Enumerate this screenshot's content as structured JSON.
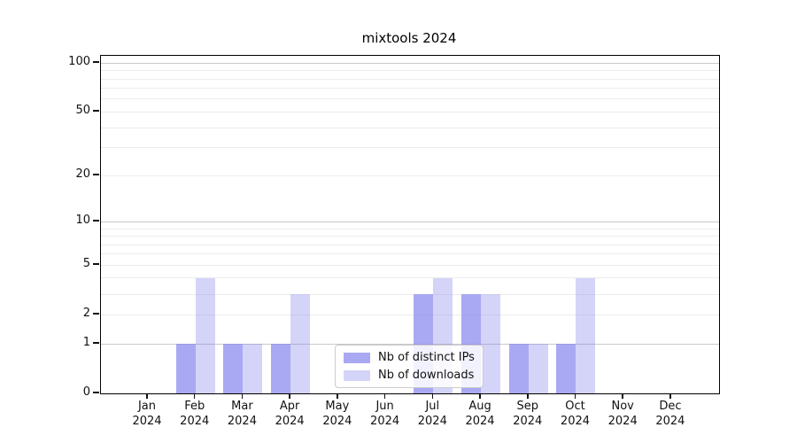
{
  "title": "mixtools 2024",
  "chart_data": {
    "type": "bar",
    "title": "mixtools 2024",
    "x_categories": [
      "Jan",
      "Feb",
      "Mar",
      "Apr",
      "May",
      "Jun",
      "Jul",
      "Aug",
      "Sep",
      "Oct",
      "Nov",
      "Dec"
    ],
    "x_year": "2024",
    "series": [
      {
        "name": "Nb of distinct IPs",
        "color": "rgba(136,136,238,0.72)",
        "values": [
          0,
          1,
          1,
          1,
          0,
          0,
          3,
          3,
          1,
          1,
          0,
          0
        ]
      },
      {
        "name": "Nb of downloads",
        "color": "rgba(136,136,238,0.36)",
        "values": [
          0,
          4,
          1,
          3,
          0,
          0,
          4,
          3,
          1,
          4,
          0,
          0
        ]
      }
    ],
    "y_axis": {
      "scale": "log10(1+x)",
      "tick_values": [
        0,
        1,
        2,
        5,
        10,
        20,
        50,
        100
      ],
      "tick_labels": [
        "0",
        "1",
        "2",
        "5",
        "10",
        "20",
        "50",
        "100"
      ],
      "minor_gridline_values": [
        3,
        4,
        6,
        7,
        8,
        9,
        30,
        40,
        60,
        70,
        80,
        90
      ],
      "emphasized_gridline_values": [
        1,
        10,
        100
      ],
      "ylim": [
        0,
        111
      ]
    },
    "legend_position": "lower center",
    "grid": true,
    "colors": {
      "grid_minor": "#ececec",
      "grid_emphasis": "#c9c9c9",
      "axis": "#000000",
      "text": "#111111"
    }
  }
}
